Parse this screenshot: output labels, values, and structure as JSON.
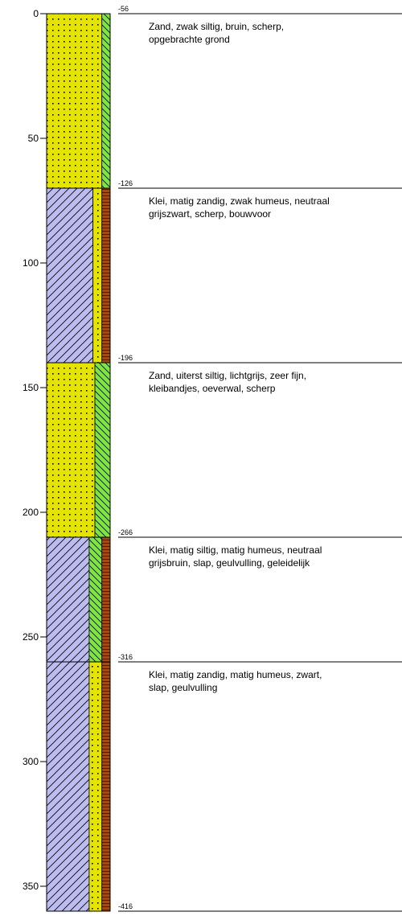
{
  "chart_data": {
    "type": "borehole-log",
    "depth_axis": {
      "range": [
        0,
        360
      ],
      "ticks": [
        0,
        50,
        100,
        150,
        200,
        250,
        300,
        350
      ]
    },
    "colors": {
      "sand": "#e4e400",
      "clay": "#bcbcf0",
      "silt": "#7ee640",
      "humus": "#a04b1a",
      "outline": "#000000"
    },
    "layers": [
      {
        "top": 0,
        "bottom": 70,
        "level_label": "-56",
        "lines": [
          "Zand, zwak siltig, bruin, scherp,",
          "opgebrachte grond"
        ],
        "columns": [
          {
            "material": "sand",
            "width": 0.87
          },
          {
            "material": "silt",
            "width": 0.13
          }
        ]
      },
      {
        "top": 70,
        "bottom": 140,
        "level_label": "-126",
        "lines": [
          "Klei, matig zandig, zwak humeus, neutraal",
          "grijszwart, scherp, bouwvoor"
        ],
        "columns": [
          {
            "material": "clay",
            "width": 0.73
          },
          {
            "material": "sand",
            "width": 0.14
          },
          {
            "material": "humus",
            "width": 0.13
          }
        ]
      },
      {
        "top": 140,
        "bottom": 210,
        "level_label": "-196",
        "lines": [
          "Zand, uiterst siltig, lichtgrijs, zeer fijn,",
          "kleibandjes, oeverwal, scherp"
        ],
        "columns": [
          {
            "material": "sand",
            "width": 0.76
          },
          {
            "material": "silt",
            "width": 0.24
          }
        ]
      },
      {
        "top": 210,
        "bottom": 260,
        "level_label": "-266",
        "lines": [
          "Klei, matig siltig, matig humeus, neutraal",
          "grijsbruin, slap, geulvulling, geleidelijk"
        ],
        "columns": [
          {
            "material": "clay",
            "width": 0.67
          },
          {
            "material": "silt",
            "width": 0.2
          },
          {
            "material": "humus",
            "width": 0.13
          }
        ]
      },
      {
        "top": 260,
        "bottom": 360,
        "level_label": "-316",
        "lines": [
          "Klei, matig zandig, matig humeus, zwart,",
          "slap, geulvulling"
        ],
        "columns": [
          {
            "material": "clay",
            "width": 0.67
          },
          {
            "material": "sand",
            "width": 0.2
          },
          {
            "material": "humus",
            "width": 0.13
          }
        ]
      }
    ],
    "bottom_level_label": "-416"
  }
}
